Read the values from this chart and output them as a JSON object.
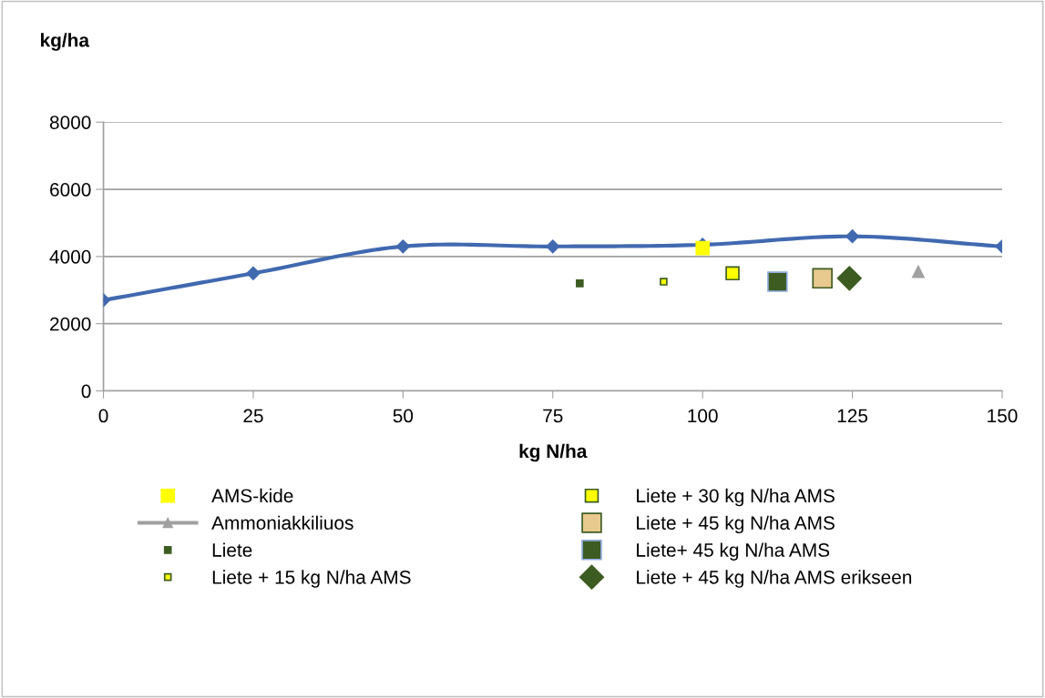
{
  "chart_data": {
    "type": "scatter",
    "ylabel": "kg/ha",
    "xlabel": "kg N/ha",
    "xlim": [
      0,
      150
    ],
    "xticks": [
      0,
      25,
      50,
      75,
      100,
      125,
      150
    ],
    "ylim": [
      0,
      8000
    ],
    "yticks": [
      0,
      2000,
      4000,
      6000,
      8000
    ],
    "grid": "y",
    "legend": "bottom",
    "series": [
      {
        "type": "line",
        "marker": "diamond",
        "line_style": "solid",
        "color": "#4169b0",
        "x": [
          0,
          25,
          50,
          75,
          100,
          125,
          150
        ],
        "values": [
          2700,
          3500,
          4300,
          4300,
          4350,
          4600,
          4300
        ]
      },
      {
        "name": "AMS-kide",
        "marker": "square",
        "color": "#ffff00",
        "x": [
          100
        ],
        "values": [
          4250
        ]
      },
      {
        "name": "Ammoniakkiliuos",
        "type": "line",
        "marker": "triangle",
        "line_style": "solid",
        "color": "#a0a0a0",
        "x": [
          136
        ],
        "values": [
          3550
        ]
      },
      {
        "name": "Liete",
        "marker": "square",
        "color": "#3d5c22",
        "x": [
          79.5
        ],
        "values": [
          3200
        ]
      },
      {
        "name": "Liete + 15 kg N/ha AMS",
        "marker": "square",
        "color": "#ffff00",
        "x": [
          93.5
        ],
        "values": [
          3250
        ]
      },
      {
        "name": "Liete + 30 kg N/ha AMS",
        "marker": "square",
        "color": "#ffff00",
        "x": [
          105
        ],
        "values": [
          3500
        ]
      },
      {
        "name": "Liete + 45 kg N/ha AMS",
        "marker": "square",
        "color": "#e8c98e",
        "x": [
          120
        ],
        "values": [
          3350
        ]
      },
      {
        "name": "Liete+ 45 kg N/ha AMS",
        "marker": "square",
        "color": "#3d5c22",
        "x": [
          112.5
        ],
        "values": [
          3250
        ]
      },
      {
        "name": "Liete + 45 kg N/ha AMS erikseen",
        "marker": "diamond",
        "color": "#3d5c22",
        "x": [
          124.5
        ],
        "values": [
          3350
        ]
      }
    ]
  }
}
